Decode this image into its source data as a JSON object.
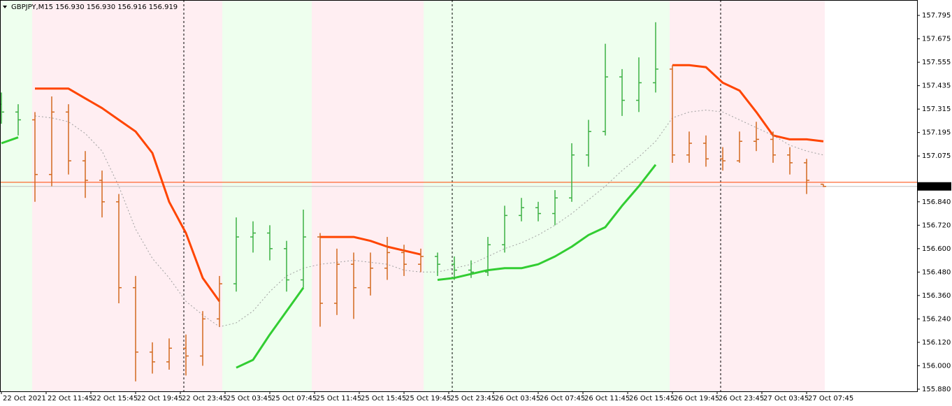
{
  "chart_data": {
    "type": "ohlc",
    "title": "GBPJPY,M15  156.930 156.930 156.916 156.919",
    "x": [
      0,
      6,
      12,
      18,
      24,
      30,
      36,
      42,
      48,
      54,
      60,
      66,
      72,
      78,
      84,
      90,
      96,
      102,
      108,
      114,
      120,
      126,
      132,
      138,
      144,
      150,
      156,
      162,
      168,
      174,
      180,
      186,
      192,
      198,
      204,
      210,
      216,
      222,
      228,
      234,
      240,
      246,
      252,
      258,
      264,
      270,
      276,
      282,
      288,
      294
    ],
    "open": [
      157.34,
      157.3,
      157.26,
      156.98,
      157.3,
      157.05,
      156.95,
      156.84,
      156.4,
      156.07,
      156.02,
      156.09,
      156.05,
      156.24,
      156.42,
      156.66,
      156.68,
      156.6,
      156.44,
      156.66,
      156.32,
      156.52,
      156.4,
      156.5,
      156.58,
      156.52,
      156.56,
      156.52,
      156.49,
      156.48,
      156.62,
      156.77,
      156.81,
      156.78,
      156.86,
      157.08,
      157.2,
      157.48,
      157.36,
      157.45,
      157.52,
      157.08,
      157.14,
      157.06,
      157.05,
      157.15,
      157.16,
      157.08,
      157.04,
      156.93
    ],
    "high": [
      157.4,
      157.34,
      157.3,
      157.38,
      157.34,
      157.1,
      157.0,
      156.88,
      156.46,
      156.12,
      156.14,
      156.16,
      156.28,
      156.46,
      156.76,
      156.74,
      156.72,
      156.64,
      156.8,
      156.68,
      156.6,
      156.58,
      156.58,
      156.66,
      156.62,
      156.6,
      156.58,
      156.56,
      156.54,
      156.66,
      156.82,
      156.86,
      156.84,
      156.9,
      157.14,
      157.26,
      157.65,
      157.52,
      157.58,
      157.76,
      157.54,
      157.2,
      157.18,
      157.12,
      157.2,
      157.25,
      157.2,
      157.12,
      157.06,
      156.93
    ],
    "low": [
      157.24,
      157.18,
      156.84,
      156.92,
      156.98,
      156.86,
      156.76,
      156.32,
      155.92,
      155.96,
      155.98,
      155.95,
      156.0,
      156.2,
      156.38,
      156.58,
      156.54,
      156.38,
      156.4,
      156.2,
      156.26,
      156.24,
      156.36,
      156.44,
      156.46,
      156.48,
      156.46,
      156.44,
      156.45,
      156.46,
      156.58,
      156.74,
      156.74,
      156.72,
      156.84,
      157.02,
      157.18,
      157.28,
      157.3,
      157.4,
      157.04,
      157.04,
      157.02,
      157.0,
      157.04,
      157.1,
      157.04,
      156.98,
      156.88,
      156.916
    ],
    "close": [
      157.3,
      157.26,
      156.98,
      157.3,
      157.05,
      156.95,
      156.84,
      156.4,
      156.07,
      156.02,
      156.09,
      156.05,
      156.24,
      156.42,
      156.66,
      156.68,
      156.6,
      156.44,
      156.66,
      156.32,
      156.52,
      156.4,
      156.5,
      156.58,
      156.52,
      156.56,
      156.52,
      156.49,
      156.48,
      156.62,
      156.77,
      156.81,
      156.78,
      156.86,
      157.08,
      157.2,
      157.48,
      157.36,
      157.45,
      157.52,
      157.08,
      157.14,
      157.06,
      157.05,
      157.15,
      157.16,
      157.08,
      157.04,
      156.95,
      156.919
    ],
    "zones": [
      {
        "from": -0.5,
        "to": 11,
        "color": "#eeffee",
        "bar_color": "#3cb043"
      },
      {
        "from": 11,
        "to": 79,
        "color": "#ffeef2",
        "bar_color": "#d2691e"
      },
      {
        "from": 79,
        "to": 111,
        "color": "#eeffee",
        "bar_color": "#3cb043"
      },
      {
        "from": 111,
        "to": 151,
        "color": "#ffeef2",
        "bar_color": "#d2691e"
      },
      {
        "from": 151,
        "to": 239,
        "color": "#eeffee",
        "bar_color": "#3cb043"
      },
      {
        "from": 239,
        "to": 294.5,
        "color": "#ffeef2",
        "bar_color": "#d2691e"
      }
    ],
    "series": [
      {
        "color": "#ff4500",
        "width": 3,
        "dash": false,
        "values": [
          null,
          null,
          157.42,
          157.42,
          157.42,
          157.37,
          157.32,
          157.26,
          157.2,
          157.09,
          156.84,
          156.68,
          156.45,
          156.33,
          null,
          null,
          null,
          null,
          null,
          156.66,
          156.66,
          156.66,
          156.64,
          156.61,
          156.59,
          156.57,
          null,
          null,
          null,
          null,
          null,
          null,
          null,
          null,
          null,
          null,
          null,
          null,
          null,
          null,
          157.54,
          157.54,
          157.53,
          157.45,
          157.41,
          157.3,
          157.18,
          157.16,
          157.16,
          157.15
        ]
      },
      {
        "color": "#32cd32",
        "width": 3,
        "dash": false,
        "values": [
          157.14,
          157.17,
          null,
          null,
          null,
          null,
          null,
          null,
          null,
          null,
          null,
          null,
          null,
          null,
          155.99,
          156.03,
          156.16,
          156.28,
          156.4,
          null,
          null,
          null,
          null,
          null,
          null,
          null,
          156.44,
          156.45,
          156.47,
          156.49,
          156.5,
          156.5,
          156.52,
          156.56,
          156.61,
          156.67,
          156.71,
          156.82,
          156.92,
          157.03,
          null,
          null,
          null,
          null,
          null,
          null,
          null,
          null,
          null,
          null
        ]
      },
      {
        "color": "#a0a0a0",
        "width": 1,
        "dash": true,
        "values": [
          null,
          null,
          157.28,
          157.27,
          157.25,
          157.19,
          157.1,
          156.92,
          156.7,
          156.55,
          156.45,
          156.33,
          156.26,
          156.2,
          156.22,
          156.28,
          156.38,
          156.46,
          156.5,
          156.52,
          156.53,
          156.54,
          156.53,
          156.52,
          156.49,
          156.48,
          156.48,
          156.5,
          156.52,
          156.56,
          156.6,
          156.63,
          156.67,
          156.72,
          156.78,
          156.85,
          156.92,
          157.0,
          157.07,
          157.15,
          157.27,
          157.3,
          157.31,
          157.3,
          157.26,
          157.22,
          157.18,
          157.13,
          157.1,
          157.08
        ]
      }
    ],
    "price_lines": [
      {
        "value": 156.94,
        "color": "#ff4500"
      },
      {
        "value": 156.919,
        "color": "#c0c0c0"
      }
    ],
    "xlim": [
      -0.5,
      327.5
    ],
    "ylim": [
      155.869,
      157.874
    ],
    "xticks": [
      {
        "value": 0,
        "label": "22 Oct 2021"
      },
      {
        "value": 16,
        "label": "22 Oct 11:45"
      },
      {
        "value": 32,
        "label": "22 Oct 15:45"
      },
      {
        "value": 48,
        "label": "22 Oct 19:45"
      },
      {
        "value": 64,
        "label": "22 Oct 23:45"
      },
      {
        "value": 80,
        "label": "25 Oct 03:45"
      },
      {
        "value": 96,
        "label": "25 Oct 07:45"
      },
      {
        "value": 112,
        "label": "25 Oct 11:45"
      },
      {
        "value": 128,
        "label": "25 Oct 15:45"
      },
      {
        "value": 144,
        "label": "25 Oct 19:45"
      },
      {
        "value": 160,
        "label": "25 Oct 23:45"
      },
      {
        "value": 176,
        "label": "26 Oct 03:45"
      },
      {
        "value": 192,
        "label": "26 Oct 07:45"
      },
      {
        "value": 208,
        "label": "26 Oct 11:45"
      },
      {
        "value": 224,
        "label": "26 Oct 15:45"
      },
      {
        "value": 240,
        "label": "26 Oct 19:45"
      },
      {
        "value": 256,
        "label": "26 Oct 23:45"
      },
      {
        "value": 272,
        "label": "27 Oct 03:45"
      },
      {
        "value": 288,
        "label": "27 Oct 07:45"
      }
    ],
    "yticks": [
      157.795,
      157.675,
      157.555,
      157.435,
      157.315,
      157.195,
      157.075,
      {
        "value": 156.84,
        "label": "156.840"
      },
      {
        "value": 156.72,
        "label": "156.720"
      },
      {
        "value": 156.6,
        "label": "156.600"
      },
      {
        "value": 156.48,
        "label": "156.480"
      },
      {
        "value": 156.36,
        "label": "156.360"
      },
      {
        "value": 156.24,
        "label": "156.240"
      },
      {
        "value": 156.12,
        "label": "156.120"
      },
      {
        "value": 156.0,
        "label": "156.000"
      },
      {
        "value": 155.88,
        "label": "155.880"
      }
    ]
  }
}
